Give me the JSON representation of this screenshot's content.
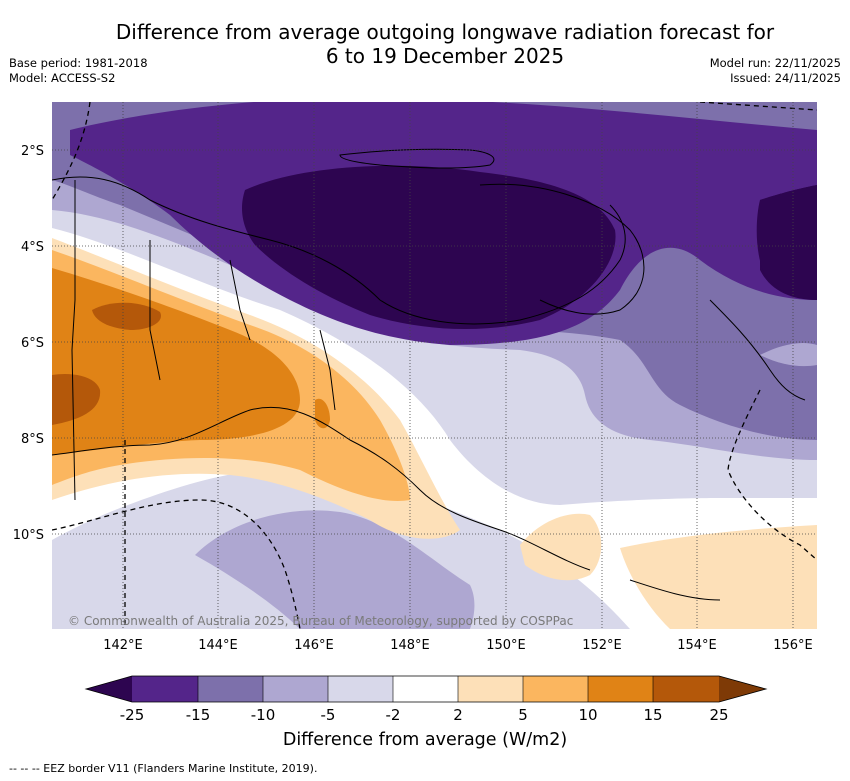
{
  "title_line1": "Difference from average outgoing longwave radiation forecast for",
  "title_line2": "6 to 19 December 2025",
  "base_period": "Base period: 1981-2018",
  "model": "Model: ACCESS-S2",
  "model_run": "Model run: 22/11/2025",
  "issued": "Issued: 24/11/2025",
  "copyright": "© Commonwealth of Australia 2025, Bureau of Meteorology, supported by COSPPac",
  "footnote": "-- -- -- EEZ border V11 (Flanders Marine Institute, 2019).",
  "lat_labels": [
    "2°S",
    "4°S",
    "6°S",
    "8°S",
    "10°S"
  ],
  "lon_labels": [
    "142°E",
    "144°E",
    "146°E",
    "148°E",
    "150°E",
    "152°E",
    "154°E",
    "156°E"
  ],
  "colorbar": {
    "label": "Difference from average (W/m2)",
    "ticks": [
      "-25",
      "-15",
      "-10",
      "-5",
      "-2",
      "2",
      "5",
      "10",
      "15",
      "25"
    ],
    "colors": {
      "lt_m25": "#2d0550",
      "m25_m15": "#54258a",
      "m15_m10": "#7d70ab",
      "m10_m5": "#aea7d1",
      "m5_m2": "#d8d8ea",
      "m2_2": "#ffffff",
      "p2_p5": "#fde0b8",
      "p5_p10": "#fbb65f",
      "p10_p15": "#e08316",
      "p15_p25": "#b4580a",
      "gt_p25": "#7e3a06"
    }
  }
}
